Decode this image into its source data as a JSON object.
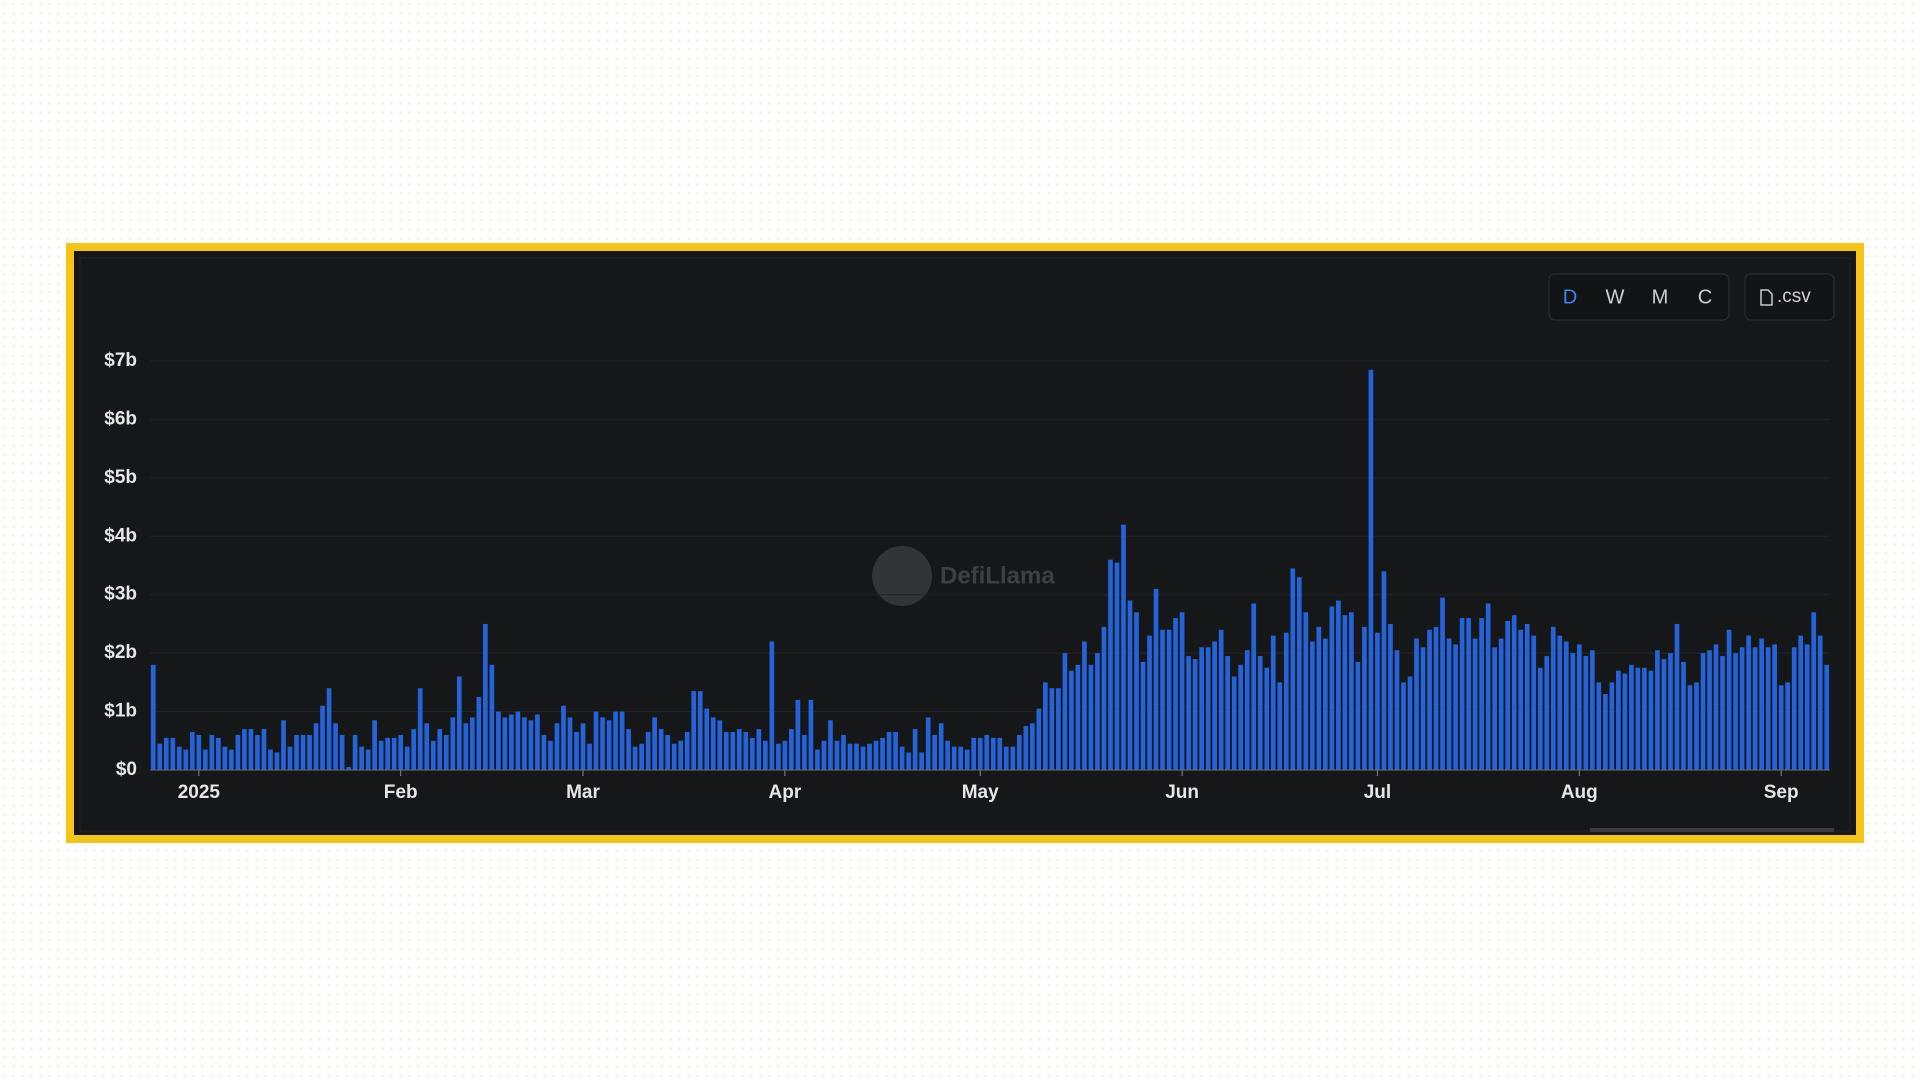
{
  "chart_data": {
    "type": "bar",
    "controls": [
      "D",
      "W",
      "M",
      "C"
    ],
    "export": ".csv",
    "watermark": "DefiLlama",
    "color": "#2563d8",
    "categories": [
      null,
      null,
      null,
      null,
      null,
      null,
      null,
      "2025",
      null,
      null,
      null,
      null,
      null,
      null,
      null,
      null,
      null,
      null,
      null,
      null,
      null,
      null,
      null,
      null,
      null,
      null,
      null,
      null,
      null,
      null,
      null,
      null,
      null,
      null,
      null,
      null,
      null,
      null,
      "Feb",
      null,
      null,
      null,
      null,
      null,
      null,
      null,
      null,
      null,
      null,
      null,
      null,
      null,
      null,
      null,
      null,
      null,
      null,
      null,
      null,
      null,
      null,
      null,
      null,
      null,
      null,
      null,
      "Mar",
      null,
      null,
      null,
      null,
      null,
      null,
      null,
      null,
      null,
      null,
      null,
      null,
      null,
      null,
      null,
      null,
      null,
      null,
      null,
      null,
      null,
      null,
      null,
      null,
      null,
      null,
      null,
      null,
      null,
      null,
      "Apr",
      null,
      null,
      null,
      null,
      null,
      null,
      null,
      null,
      null,
      null,
      null,
      null,
      null,
      null,
      null,
      null,
      null,
      null,
      null,
      null,
      null,
      null,
      null,
      null,
      null,
      null,
      null,
      null,
      null,
      "May",
      null,
      null,
      null,
      null,
      null,
      null,
      null,
      null,
      null,
      null,
      null,
      null,
      null,
      null,
      null,
      null,
      null,
      null,
      null,
      null,
      null,
      null,
      null,
      null,
      null,
      null,
      null,
      null,
      null,
      null,
      "Jun",
      null,
      null,
      null,
      null,
      null,
      null,
      null,
      null,
      null,
      null,
      null,
      null,
      null,
      null,
      null,
      null,
      null,
      null,
      null,
      null,
      null,
      null,
      null,
      null,
      null,
      null,
      null,
      null,
      null,
      "Jul",
      null,
      null,
      null,
      null,
      null,
      null,
      null,
      null,
      null,
      null,
      null,
      null,
      null,
      null,
      null,
      null,
      null,
      null,
      null,
      null,
      null,
      null,
      null,
      null,
      null,
      null,
      null,
      null,
      null,
      null,
      "Aug",
      null,
      null,
      null,
      null,
      null,
      null,
      null,
      null,
      null,
      null,
      null,
      null,
      null,
      null,
      null,
      null,
      null,
      null,
      null,
      null,
      null,
      null,
      null,
      null,
      null,
      null,
      null,
      null,
      null,
      null,
      "Sep",
      null,
      null,
      null,
      null,
      null,
      null,
      null
    ],
    "values": [
      1.8,
      0.45,
      0.55,
      0.55,
      0.4,
      0.35,
      0.65,
      0.6,
      0.35,
      0.6,
      0.55,
      0.4,
      0.35,
      0.6,
      0.7,
      0.7,
      0.6,
      0.7,
      0.35,
      0.3,
      0.85,
      0.4,
      0.6,
      0.6,
      0.6,
      0.8,
      1.1,
      1.4,
      0.8,
      0.6,
      0.05,
      0.6,
      0.4,
      0.35,
      0.85,
      0.5,
      0.55,
      0.55,
      0.6,
      0.4,
      0.7,
      1.4,
      0.8,
      0.5,
      0.7,
      0.6,
      0.9,
      1.6,
      0.8,
      0.9,
      1.25,
      2.5,
      1.8,
      1.0,
      0.9,
      0.95,
      1.0,
      0.9,
      0.85,
      0.95,
      0.6,
      0.5,
      0.8,
      1.1,
      0.9,
      0.65,
      0.8,
      0.45,
      1.0,
      0.9,
      0.85,
      1.0,
      1.0,
      0.7,
      0.4,
      0.45,
      0.65,
      0.9,
      0.7,
      0.6,
      0.45,
      0.5,
      0.65,
      1.35,
      1.35,
      1.05,
      0.9,
      0.85,
      0.65,
      0.65,
      0.7,
      0.65,
      0.55,
      0.7,
      0.5,
      2.2,
      0.45,
      0.5,
      0.7,
      1.2,
      0.6,
      1.2,
      0.35,
      0.5,
      0.85,
      0.5,
      0.6,
      0.45,
      0.45,
      0.4,
      0.45,
      0.5,
      0.55,
      0.65,
      0.65,
      0.4,
      0.3,
      0.7,
      0.3,
      0.9,
      0.6,
      0.8,
      0.5,
      0.4,
      0.4,
      0.35,
      0.55,
      0.55,
      0.6,
      0.55,
      0.55,
      0.4,
      0.4,
      0.6,
      0.75,
      0.8,
      1.05,
      1.5,
      1.4,
      1.4,
      2.0,
      1.7,
      1.8,
      2.2,
      1.8,
      2.0,
      2.45,
      3.6,
      3.55,
      4.2,
      2.9,
      2.7,
      1.85,
      2.3,
      3.1,
      2.4,
      2.4,
      2.6,
      2.7,
      1.95,
      1.9,
      2.1,
      2.1,
      2.2,
      2.4,
      1.95,
      1.6,
      1.8,
      2.05,
      2.85,
      1.95,
      1.75,
      2.3,
      1.5,
      2.35,
      3.45,
      3.3,
      2.7,
      2.2,
      2.45,
      2.25,
      2.8,
      2.9,
      2.65,
      2.7,
      1.85,
      2.45,
      6.85,
      2.35,
      3.4,
      2.5,
      2.05,
      1.5,
      1.6,
      2.25,
      2.1,
      2.4,
      2.45,
      2.95,
      2.25,
      2.15,
      2.6,
      2.6,
      2.25,
      2.6,
      2.85,
      2.1,
      2.25,
      2.55,
      2.65,
      2.4,
      2.5,
      2.3,
      1.75,
      1.95,
      2.45,
      2.3,
      2.2,
      2.0,
      2.15,
      1.95,
      2.05,
      1.5,
      1.3,
      1.5,
      1.7,
      1.65,
      1.8,
      1.75,
      1.75,
      1.7,
      2.05,
      1.9,
      2.0,
      2.5,
      1.85,
      1.45,
      1.5,
      2.0,
      2.05,
      2.15,
      1.95,
      2.4,
      2.0,
      2.1,
      2.3,
      2.1,
      2.25,
      2.1,
      2.15,
      1.45,
      1.5,
      2.1,
      2.3,
      2.15,
      2.7,
      2.3,
      1.8
    ],
    "ylim": [
      0,
      7
    ],
    "yticks": [
      {
        "value": 0,
        "label": "$0"
      },
      {
        "value": 1,
        "label": "$1b"
      },
      {
        "value": 2,
        "label": "$2b"
      },
      {
        "value": 3,
        "label": "$3b"
      },
      {
        "value": 4,
        "label": "$4b"
      },
      {
        "value": 5,
        "label": "$5b"
      },
      {
        "value": 6,
        "label": "$6b"
      },
      {
        "value": 7,
        "label": "$7b"
      }
    ],
    "grid": true
  }
}
